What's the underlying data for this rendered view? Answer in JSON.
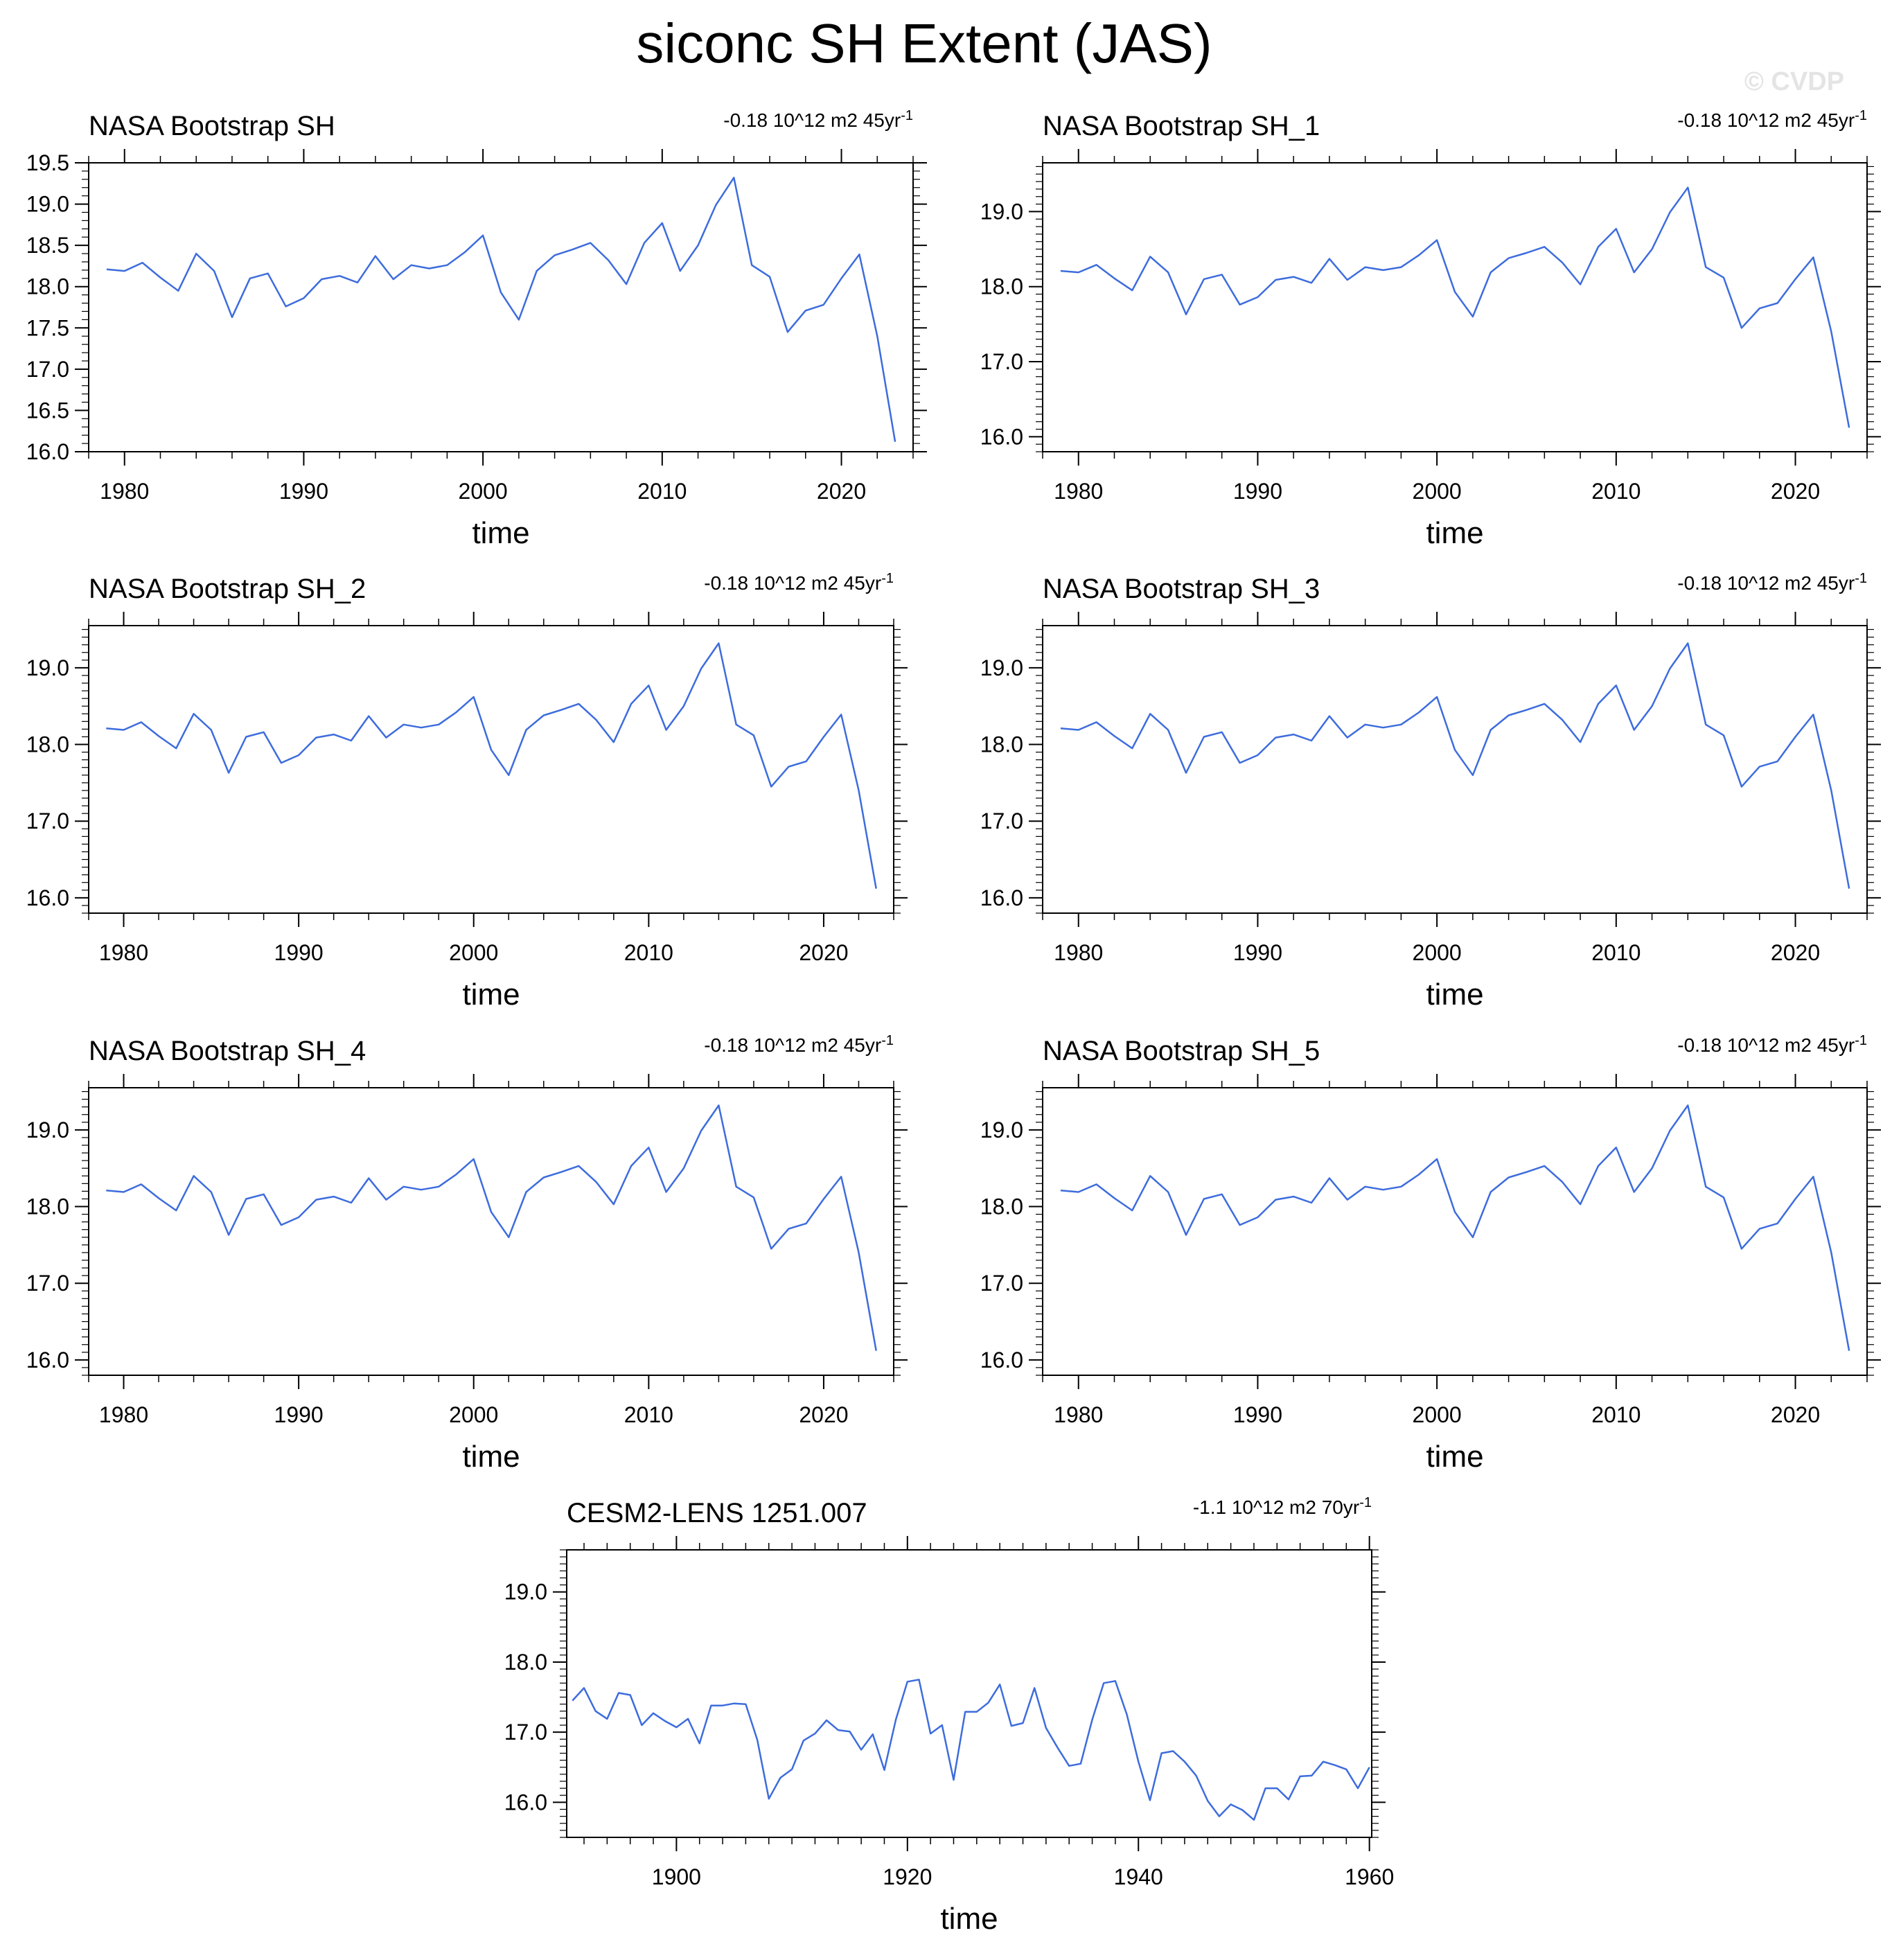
{
  "title": "siconc SH Extent (JAS)",
  "watermark": "© CVDP",
  "line_color": "#3d6cdd",
  "chart_data": [
    {
      "type": "line",
      "title": "NASA Bootstrap SH",
      "trend_text": "-0.18 10^12 m2 45yr",
      "trend_superscript": "-1",
      "xlabel": "time",
      "ylabel": "",
      "xlim": [
        1978,
        2024
      ],
      "ylim": [
        16.0,
        19.5
      ],
      "xticks": [
        1980,
        1990,
        2000,
        2010,
        2020
      ],
      "yticks": [
        16.0,
        16.5,
        17.0,
        17.5,
        18.0,
        18.5,
        19.0,
        19.5
      ],
      "ytick_labels": [
        "16.0",
        "16.5",
        "17.0",
        "17.5",
        "18.0",
        "18.5",
        "19.0",
        "19.5"
      ],
      "x_start": 1979,
      "values": [
        18.21,
        18.19,
        18.29,
        18.11,
        17.95,
        18.4,
        18.19,
        17.63,
        18.1,
        18.16,
        17.76,
        17.86,
        18.09,
        18.13,
        18.05,
        18.37,
        18.09,
        18.26,
        18.22,
        18.26,
        18.42,
        18.62,
        17.93,
        17.6,
        18.19,
        18.38,
        18.45,
        18.53,
        18.32,
        18.03,
        18.53,
        18.77,
        18.19,
        18.5,
        18.99,
        19.32,
        18.26,
        18.12,
        17.45,
        17.71,
        17.78,
        18.1,
        18.39,
        17.4,
        16.12
      ]
    },
    {
      "type": "line",
      "title": "NASA Bootstrap SH_1",
      "trend_text": "-0.18 10^12 m2 45yr",
      "trend_superscript": "-1",
      "xlabel": "time",
      "ylabel": "",
      "xlim": [
        1978,
        2024
      ],
      "ylim": [
        15.8,
        19.65
      ],
      "xticks": [
        1980,
        1990,
        2000,
        2010,
        2020
      ],
      "yticks": [
        16.0,
        17.0,
        18.0,
        19.0
      ],
      "ytick_labels": [
        "16.0",
        "17.0",
        "18.0",
        "19.0"
      ],
      "x_start": 1979,
      "values": [
        18.21,
        18.19,
        18.29,
        18.11,
        17.95,
        18.4,
        18.19,
        17.63,
        18.1,
        18.16,
        17.76,
        17.86,
        18.09,
        18.13,
        18.05,
        18.37,
        18.09,
        18.26,
        18.22,
        18.26,
        18.42,
        18.62,
        17.93,
        17.6,
        18.19,
        18.38,
        18.45,
        18.53,
        18.32,
        18.03,
        18.53,
        18.77,
        18.19,
        18.5,
        18.99,
        19.32,
        18.26,
        18.12,
        17.45,
        17.71,
        17.78,
        18.1,
        18.39,
        17.4,
        16.12
      ]
    },
    {
      "type": "line",
      "title": "NASA Bootstrap SH_2",
      "trend_text": "-0.18 10^12 m2 45yr",
      "trend_superscript": "-1",
      "xlabel": "time",
      "ylabel": "",
      "xlim": [
        1978,
        2024
      ],
      "ylim": [
        15.8,
        19.55
      ],
      "xticks": [
        1980,
        1990,
        2000,
        2010,
        2020
      ],
      "yticks": [
        16.0,
        17.0,
        18.0,
        19.0
      ],
      "ytick_labels": [
        "16.0",
        "17.0",
        "18.0",
        "19.0"
      ],
      "x_start": 1979,
      "values": [
        18.21,
        18.19,
        18.29,
        18.11,
        17.95,
        18.4,
        18.19,
        17.63,
        18.1,
        18.16,
        17.76,
        17.86,
        18.09,
        18.13,
        18.05,
        18.37,
        18.09,
        18.26,
        18.22,
        18.26,
        18.42,
        18.62,
        17.93,
        17.6,
        18.19,
        18.38,
        18.45,
        18.53,
        18.32,
        18.03,
        18.53,
        18.77,
        18.19,
        18.5,
        18.99,
        19.32,
        18.26,
        18.12,
        17.45,
        17.71,
        17.78,
        18.1,
        18.39,
        17.4,
        16.12
      ]
    },
    {
      "type": "line",
      "title": "NASA Bootstrap SH_3",
      "trend_text": "-0.18 10^12 m2 45yr",
      "trend_superscript": "-1",
      "xlabel": "time",
      "ylabel": "",
      "xlim": [
        1978,
        2024
      ],
      "ylim": [
        15.8,
        19.55
      ],
      "xticks": [
        1980,
        1990,
        2000,
        2010,
        2020
      ],
      "yticks": [
        16.0,
        17.0,
        18.0,
        19.0
      ],
      "ytick_labels": [
        "16.0",
        "17.0",
        "18.0",
        "19.0"
      ],
      "x_start": 1979,
      "values": [
        18.21,
        18.19,
        18.29,
        18.11,
        17.95,
        18.4,
        18.19,
        17.63,
        18.1,
        18.16,
        17.76,
        17.86,
        18.09,
        18.13,
        18.05,
        18.37,
        18.09,
        18.26,
        18.22,
        18.26,
        18.42,
        18.62,
        17.93,
        17.6,
        18.19,
        18.38,
        18.45,
        18.53,
        18.32,
        18.03,
        18.53,
        18.77,
        18.19,
        18.5,
        18.99,
        19.32,
        18.26,
        18.12,
        17.45,
        17.71,
        17.78,
        18.1,
        18.39,
        17.4,
        16.12
      ]
    },
    {
      "type": "line",
      "title": "NASA Bootstrap SH_4",
      "trend_text": "-0.18 10^12 m2 45yr",
      "trend_superscript": "-1",
      "xlabel": "time",
      "ylabel": "",
      "xlim": [
        1978,
        2024
      ],
      "ylim": [
        15.8,
        19.55
      ],
      "xticks": [
        1980,
        1990,
        2000,
        2010,
        2020
      ],
      "yticks": [
        16.0,
        17.0,
        18.0,
        19.0
      ],
      "ytick_labels": [
        "16.0",
        "17.0",
        "18.0",
        "19.0"
      ],
      "x_start": 1979,
      "values": [
        18.21,
        18.19,
        18.29,
        18.11,
        17.95,
        18.4,
        18.19,
        17.63,
        18.1,
        18.16,
        17.76,
        17.86,
        18.09,
        18.13,
        18.05,
        18.37,
        18.09,
        18.26,
        18.22,
        18.26,
        18.42,
        18.62,
        17.93,
        17.6,
        18.19,
        18.38,
        18.45,
        18.53,
        18.32,
        18.03,
        18.53,
        18.77,
        18.19,
        18.5,
        18.99,
        19.32,
        18.26,
        18.12,
        17.45,
        17.71,
        17.78,
        18.1,
        18.39,
        17.4,
        16.12
      ]
    },
    {
      "type": "line",
      "title": "NASA Bootstrap SH_5",
      "trend_text": "-0.18 10^12 m2 45yr",
      "trend_superscript": "-1",
      "xlabel": "time",
      "ylabel": "",
      "xlim": [
        1978,
        2024
      ],
      "ylim": [
        15.8,
        19.55
      ],
      "xticks": [
        1980,
        1990,
        2000,
        2010,
        2020
      ],
      "yticks": [
        16.0,
        17.0,
        18.0,
        19.0
      ],
      "ytick_labels": [
        "16.0",
        "17.0",
        "18.0",
        "19.0"
      ],
      "x_start": 1979,
      "values": [
        18.21,
        18.19,
        18.29,
        18.11,
        17.95,
        18.4,
        18.19,
        17.63,
        18.1,
        18.16,
        17.76,
        17.86,
        18.09,
        18.13,
        18.05,
        18.37,
        18.09,
        18.26,
        18.22,
        18.26,
        18.42,
        18.62,
        17.93,
        17.6,
        18.19,
        18.38,
        18.45,
        18.53,
        18.32,
        18.03,
        18.53,
        18.77,
        18.19,
        18.5,
        18.99,
        19.32,
        18.26,
        18.12,
        17.45,
        17.71,
        17.78,
        18.1,
        18.39,
        17.4,
        16.12
      ]
    },
    {
      "type": "line",
      "title": "CESM2-LENS 1251.007",
      "trend_text": "-1.1 10^12 m2 70yr",
      "trend_superscript": "-1",
      "xlabel": "time",
      "ylabel": "",
      "xlim": [
        1890.5,
        1960.2
      ],
      "ylim": [
        15.5,
        19.6
      ],
      "xticks": [
        1900,
        1920,
        1940,
        1960
      ],
      "yticks": [
        16.0,
        17.0,
        18.0,
        19.0
      ],
      "ytick_labels": [
        "16.0",
        "17.0",
        "18.0",
        "19.0"
      ],
      "x_start": 1891,
      "values": [
        17.45,
        17.63,
        17.3,
        17.19,
        17.56,
        17.53,
        17.1,
        17.27,
        17.16,
        17.07,
        17.19,
        16.84,
        17.38,
        17.38,
        17.41,
        17.4,
        16.89,
        16.05,
        16.35,
        16.47,
        16.88,
        16.98,
        17.17,
        17.03,
        17.01,
        16.75,
        16.97,
        16.46,
        17.18,
        17.72,
        17.75,
        16.98,
        17.1,
        16.32,
        17.29,
        17.29,
        17.42,
        17.68,
        17.09,
        17.13,
        17.63,
        17.06,
        16.78,
        16.52,
        16.55,
        17.18,
        17.7,
        17.73,
        17.25,
        16.58,
        16.03,
        16.7,
        16.73,
        16.58,
        16.38,
        16.02,
        15.8,
        15.97,
        15.89,
        15.75,
        16.2,
        16.2,
        16.04,
        16.37,
        16.38,
        16.58,
        16.53,
        16.47,
        16.2,
        16.5
      ]
    }
  ]
}
